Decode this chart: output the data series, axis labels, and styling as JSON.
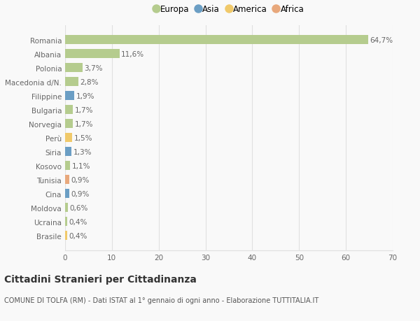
{
  "categories": [
    "Romania",
    "Albania",
    "Polonia",
    "Macedonia d/N.",
    "Filippine",
    "Bulgaria",
    "Norvegia",
    "Perù",
    "Siria",
    "Kosovo",
    "Tunisia",
    "Cina",
    "Moldova",
    "Ucraina",
    "Brasile"
  ],
  "values": [
    64.7,
    11.6,
    3.7,
    2.8,
    1.9,
    1.7,
    1.7,
    1.5,
    1.3,
    1.1,
    0.9,
    0.9,
    0.6,
    0.4,
    0.4
  ],
  "labels": [
    "64,7%",
    "11,6%",
    "3,7%",
    "2,8%",
    "1,9%",
    "1,7%",
    "1,7%",
    "1,5%",
    "1,3%",
    "1,1%",
    "0,9%",
    "0,9%",
    "0,6%",
    "0,4%",
    "0,4%"
  ],
  "continents": [
    "Europa",
    "Europa",
    "Europa",
    "Europa",
    "Asia",
    "Europa",
    "Europa",
    "America",
    "Asia",
    "Europa",
    "Africa",
    "Asia",
    "Europa",
    "Europa",
    "America"
  ],
  "continent_colors": {
    "Europa": "#b5cc8e",
    "Asia": "#6b9ec4",
    "America": "#f0c96a",
    "Africa": "#e8a87c"
  },
  "legend_items": [
    "Europa",
    "Asia",
    "America",
    "Africa"
  ],
  "legend_colors": [
    "#b5cc8e",
    "#6b9ec4",
    "#f0c96a",
    "#e8a87c"
  ],
  "title": "Cittadini Stranieri per Cittadinanza",
  "subtitle": "COMUNE DI TOLFA (RM) - Dati ISTAT al 1° gennaio di ogni anno - Elaborazione TUTTITALIA.IT",
  "xlim": [
    0,
    70
  ],
  "xticks": [
    0,
    10,
    20,
    30,
    40,
    50,
    60,
    70
  ],
  "background_color": "#f9f9f9",
  "grid_color": "#e0e0e0",
  "bar_height": 0.65,
  "label_fontsize": 7.5,
  "tick_fontsize": 7.5,
  "title_fontsize": 10,
  "subtitle_fontsize": 7
}
